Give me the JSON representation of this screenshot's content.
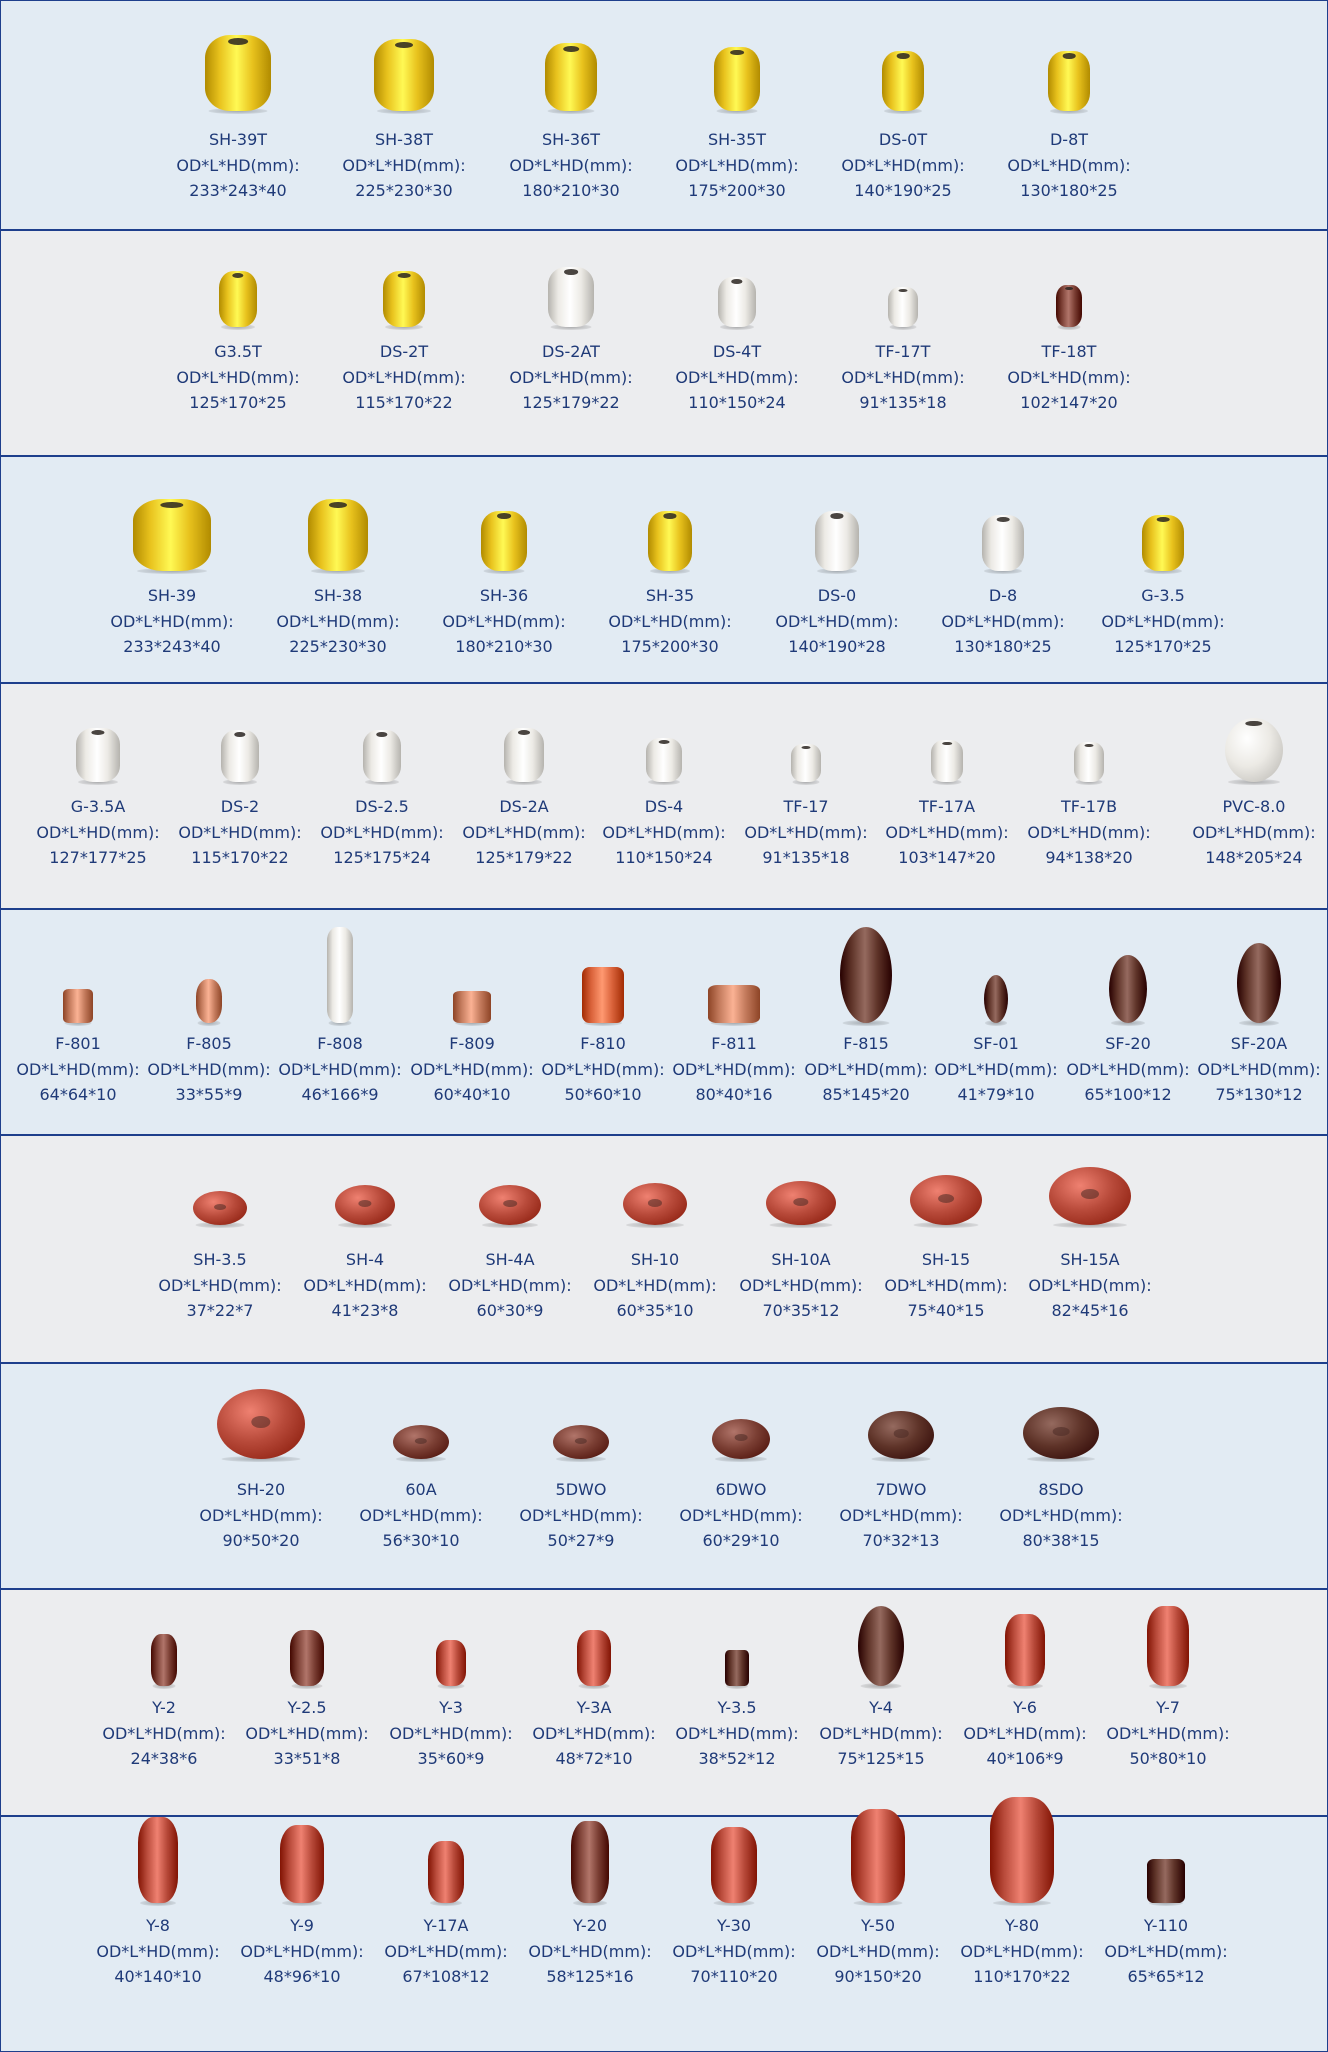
{
  "spec_label": "OD*L*HD(mm):",
  "colors": {
    "yellow": "#e8c21d",
    "white": "#eceae5",
    "brown_dark": "#5e3328",
    "brown_mid": "#7a3e33",
    "red": "#b84a3a",
    "orange": "#d9623a",
    "tan": "#c47b5d",
    "band_blue": "#e2ebf3",
    "band_gray": "#ecedef",
    "border": "#1e3f8c",
    "text": "#1f3a78"
  },
  "rows": [
    {
      "items": [
        {
          "code": "SH-39T",
          "dims": "233*243*40",
          "color": "yellow",
          "icon": "float-icon-barrel-yellow"
        },
        {
          "code": "SH-38T",
          "dims": "225*230*30",
          "color": "yellow",
          "icon": "float-icon-barrel-yellow"
        },
        {
          "code": "SH-36T",
          "dims": "180*210*30",
          "color": "yellow",
          "icon": "float-icon-barrel-yellow"
        },
        {
          "code": "SH-35T",
          "dims": "175*200*30",
          "color": "yellow",
          "icon": "float-icon-barrel-yellow"
        },
        {
          "code": "DS-0T",
          "dims": "140*190*25",
          "color": "yellow",
          "icon": "float-icon-barrel-yellow"
        },
        {
          "code": "D-8T",
          "dims": "130*180*25",
          "color": "yellow",
          "icon": "float-icon-barrel-yellow"
        }
      ]
    },
    {
      "items": [
        {
          "code": "G3.5T",
          "dims": "125*170*25",
          "color": "yellow",
          "icon": "float-icon-barrel-yellow"
        },
        {
          "code": "DS-2T",
          "dims": "115*170*22",
          "color": "yellow",
          "icon": "float-icon-barrel-yellow"
        },
        {
          "code": "DS-2AT",
          "dims": "125*179*22",
          "color": "white",
          "icon": "float-icon-barrel-white"
        },
        {
          "code": "DS-4T",
          "dims": "110*150*24",
          "color": "white",
          "icon": "float-icon-barrel-white"
        },
        {
          "code": "TF-17T",
          "dims": "91*135*18",
          "color": "white",
          "icon": "float-icon-barrel-white"
        },
        {
          "code": "TF-18T",
          "dims": "102*147*20",
          "color": "brown_mid",
          "icon": "float-icon-barrel-brown"
        }
      ]
    },
    {
      "items": [
        {
          "code": "SH-39",
          "dims": "233*243*40",
          "color": "yellow",
          "icon": "float-icon-barrel-yellow"
        },
        {
          "code": "SH-38",
          "dims": "225*230*30",
          "color": "yellow",
          "icon": "float-icon-barrel-yellow"
        },
        {
          "code": "SH-36",
          "dims": "180*210*30",
          "color": "yellow",
          "icon": "float-icon-barrel-yellow"
        },
        {
          "code": "SH-35",
          "dims": "175*200*30",
          "color": "yellow",
          "icon": "float-icon-barrel-yellow"
        },
        {
          "code": "DS-0",
          "dims": "140*190*28",
          "color": "white",
          "icon": "float-icon-barrel-white"
        },
        {
          "code": "D-8",
          "dims": "130*180*25",
          "color": "white",
          "icon": "float-icon-barrel-white"
        },
        {
          "code": "G-3.5",
          "dims": "125*170*25",
          "color": "yellow",
          "icon": "float-icon-barrel-yellow"
        }
      ]
    },
    {
      "items": [
        {
          "code": "G-3.5A",
          "dims": "127*177*25",
          "color": "white",
          "icon": "float-icon-barrel-white"
        },
        {
          "code": "DS-2",
          "dims": "115*170*22",
          "color": "white",
          "icon": "float-icon-barrel-white"
        },
        {
          "code": "DS-2.5",
          "dims": "125*175*24",
          "color": "white",
          "icon": "float-icon-barrel-white"
        },
        {
          "code": "DS-2A",
          "dims": "125*179*22",
          "color": "white",
          "icon": "float-icon-barrel-white"
        },
        {
          "code": "DS-4",
          "dims": "110*150*24",
          "color": "white",
          "icon": "float-icon-barrel-white"
        },
        {
          "code": "TF-17",
          "dims": "91*135*18",
          "color": "white",
          "icon": "float-icon-barrel-white"
        },
        {
          "code": "TF-17A",
          "dims": "103*147*20",
          "color": "white",
          "icon": "float-icon-barrel-white"
        },
        {
          "code": "TF-17B",
          "dims": "94*138*20",
          "color": "white",
          "icon": "float-icon-barrel-white"
        },
        {
          "code": "PVC-8.0",
          "dims": "148*205*24",
          "color": "white",
          "icon": "float-icon-sphere-white"
        }
      ]
    },
    {
      "items": [
        {
          "code": "F-801",
          "dims": "64*64*10",
          "color": "tan",
          "icon": "float-icon-cylinder-tan"
        },
        {
          "code": "F-805",
          "dims": "33*55*9",
          "color": "tan",
          "icon": "float-icon-spindle-tan"
        },
        {
          "code": "F-808",
          "dims": "46*166*9",
          "color": "white",
          "icon": "float-icon-stick-white"
        },
        {
          "code": "F-809",
          "dims": "60*40*10",
          "color": "tan",
          "icon": "float-icon-cylinder-tan"
        },
        {
          "code": "F-810",
          "dims": "50*60*10",
          "color": "orange",
          "icon": "float-icon-cylinder-orange"
        },
        {
          "code": "F-811",
          "dims": "80*40*16",
          "color": "tan",
          "icon": "float-icon-cylinder-tan"
        },
        {
          "code": "F-815",
          "dims": "85*145*20",
          "color": "brown_dark",
          "icon": "float-icon-oval-brown"
        },
        {
          "code": "SF-01",
          "dims": "41*79*10",
          "color": "brown_dark",
          "icon": "float-icon-oval-brown"
        },
        {
          "code": "SF-20",
          "dims": "65*100*12",
          "color": "brown_dark",
          "icon": "float-icon-oval-brown"
        },
        {
          "code": "SF-20A",
          "dims": "75*130*12",
          "color": "brown_dark",
          "icon": "float-icon-oval-brown"
        }
      ]
    },
    {
      "items": [
        {
          "code": "SH-3.5",
          "dims": "37*22*7",
          "color": "red",
          "icon": "float-icon-disc-red"
        },
        {
          "code": "SH-4",
          "dims": "41*23*8",
          "color": "red",
          "icon": "float-icon-disc-red"
        },
        {
          "code": "SH-4A",
          "dims": "60*30*9",
          "color": "red",
          "icon": "float-icon-disc-red"
        },
        {
          "code": "SH-10",
          "dims": "60*35*10",
          "color": "red",
          "icon": "float-icon-disc-red"
        },
        {
          "code": "SH-10A",
          "dims": "70*35*12",
          "color": "red",
          "icon": "float-icon-disc-red"
        },
        {
          "code": "SH-15",
          "dims": "75*40*15",
          "color": "red",
          "icon": "float-icon-disc-red"
        },
        {
          "code": "SH-15A",
          "dims": "82*45*16",
          "color": "red",
          "icon": "float-icon-disc-red"
        }
      ]
    },
    {
      "items": [
        {
          "code": "SH-20",
          "dims": "90*50*20",
          "color": "red",
          "icon": "float-icon-disc-red"
        },
        {
          "code": "60A",
          "dims": "56*30*10",
          "color": "brown_mid",
          "icon": "float-icon-disc-brown"
        },
        {
          "code": "5DWO",
          "dims": "50*27*9",
          "color": "brown_mid",
          "icon": "float-icon-disc-brown"
        },
        {
          "code": "6DWO",
          "dims": "60*29*10",
          "color": "brown_mid",
          "icon": "float-icon-disc-brown"
        },
        {
          "code": "7DWO",
          "dims": "70*32*13",
          "color": "brown_dark",
          "icon": "float-icon-disc-brown"
        },
        {
          "code": "8SDO",
          "dims": "80*38*15",
          "color": "brown_dark",
          "icon": "float-icon-disc-brown"
        }
      ]
    },
    {
      "items": [
        {
          "code": "Y-2",
          "dims": "24*38*6",
          "color": "brown_mid",
          "icon": "float-icon-barrel-brown"
        },
        {
          "code": "Y-2.5",
          "dims": "33*51*8",
          "color": "brown_mid",
          "icon": "float-icon-barrel-brown"
        },
        {
          "code": "Y-3",
          "dims": "35*60*9",
          "color": "red",
          "icon": "float-icon-barrel-red"
        },
        {
          "code": "Y-3A",
          "dims": "48*72*10",
          "color": "red",
          "icon": "float-icon-barrel-red"
        },
        {
          "code": "Y-3.5",
          "dims": "38*52*12",
          "color": "brown_dark",
          "icon": "float-icon-cylinder-brown"
        },
        {
          "code": "Y-4",
          "dims": "75*125*15",
          "color": "brown_dark",
          "icon": "float-icon-oval-brown"
        },
        {
          "code": "Y-6",
          "dims": "40*106*9",
          "color": "red",
          "icon": "float-icon-barrel-red"
        },
        {
          "code": "Y-7",
          "dims": "50*80*10",
          "color": "red",
          "icon": "float-icon-barrel-red"
        }
      ]
    },
    {
      "items": [
        {
          "code": "Y-8",
          "dims": "40*140*10",
          "color": "red",
          "icon": "float-icon-barrel-red"
        },
        {
          "code": "Y-9",
          "dims": "48*96*10",
          "color": "red",
          "icon": "float-icon-barrel-red"
        },
        {
          "code": "Y-17A",
          "dims": "67*108*12",
          "color": "red",
          "icon": "float-icon-barrel-red"
        },
        {
          "code": "Y-20",
          "dims": "58*125*16",
          "color": "brown_mid",
          "icon": "float-icon-barrel-brown"
        },
        {
          "code": "Y-30",
          "dims": "70*110*20",
          "color": "red",
          "icon": "float-icon-barrel-red"
        },
        {
          "code": "Y-50",
          "dims": "90*150*20",
          "color": "red",
          "icon": "float-icon-barrel-red"
        },
        {
          "code": "Y-80",
          "dims": "110*170*22",
          "color": "red",
          "icon": "float-icon-barrel-red"
        },
        {
          "code": "Y-110",
          "dims": "65*65*12",
          "color": "brown_dark",
          "icon": "float-icon-cylinder-brown"
        }
      ]
    }
  ]
}
